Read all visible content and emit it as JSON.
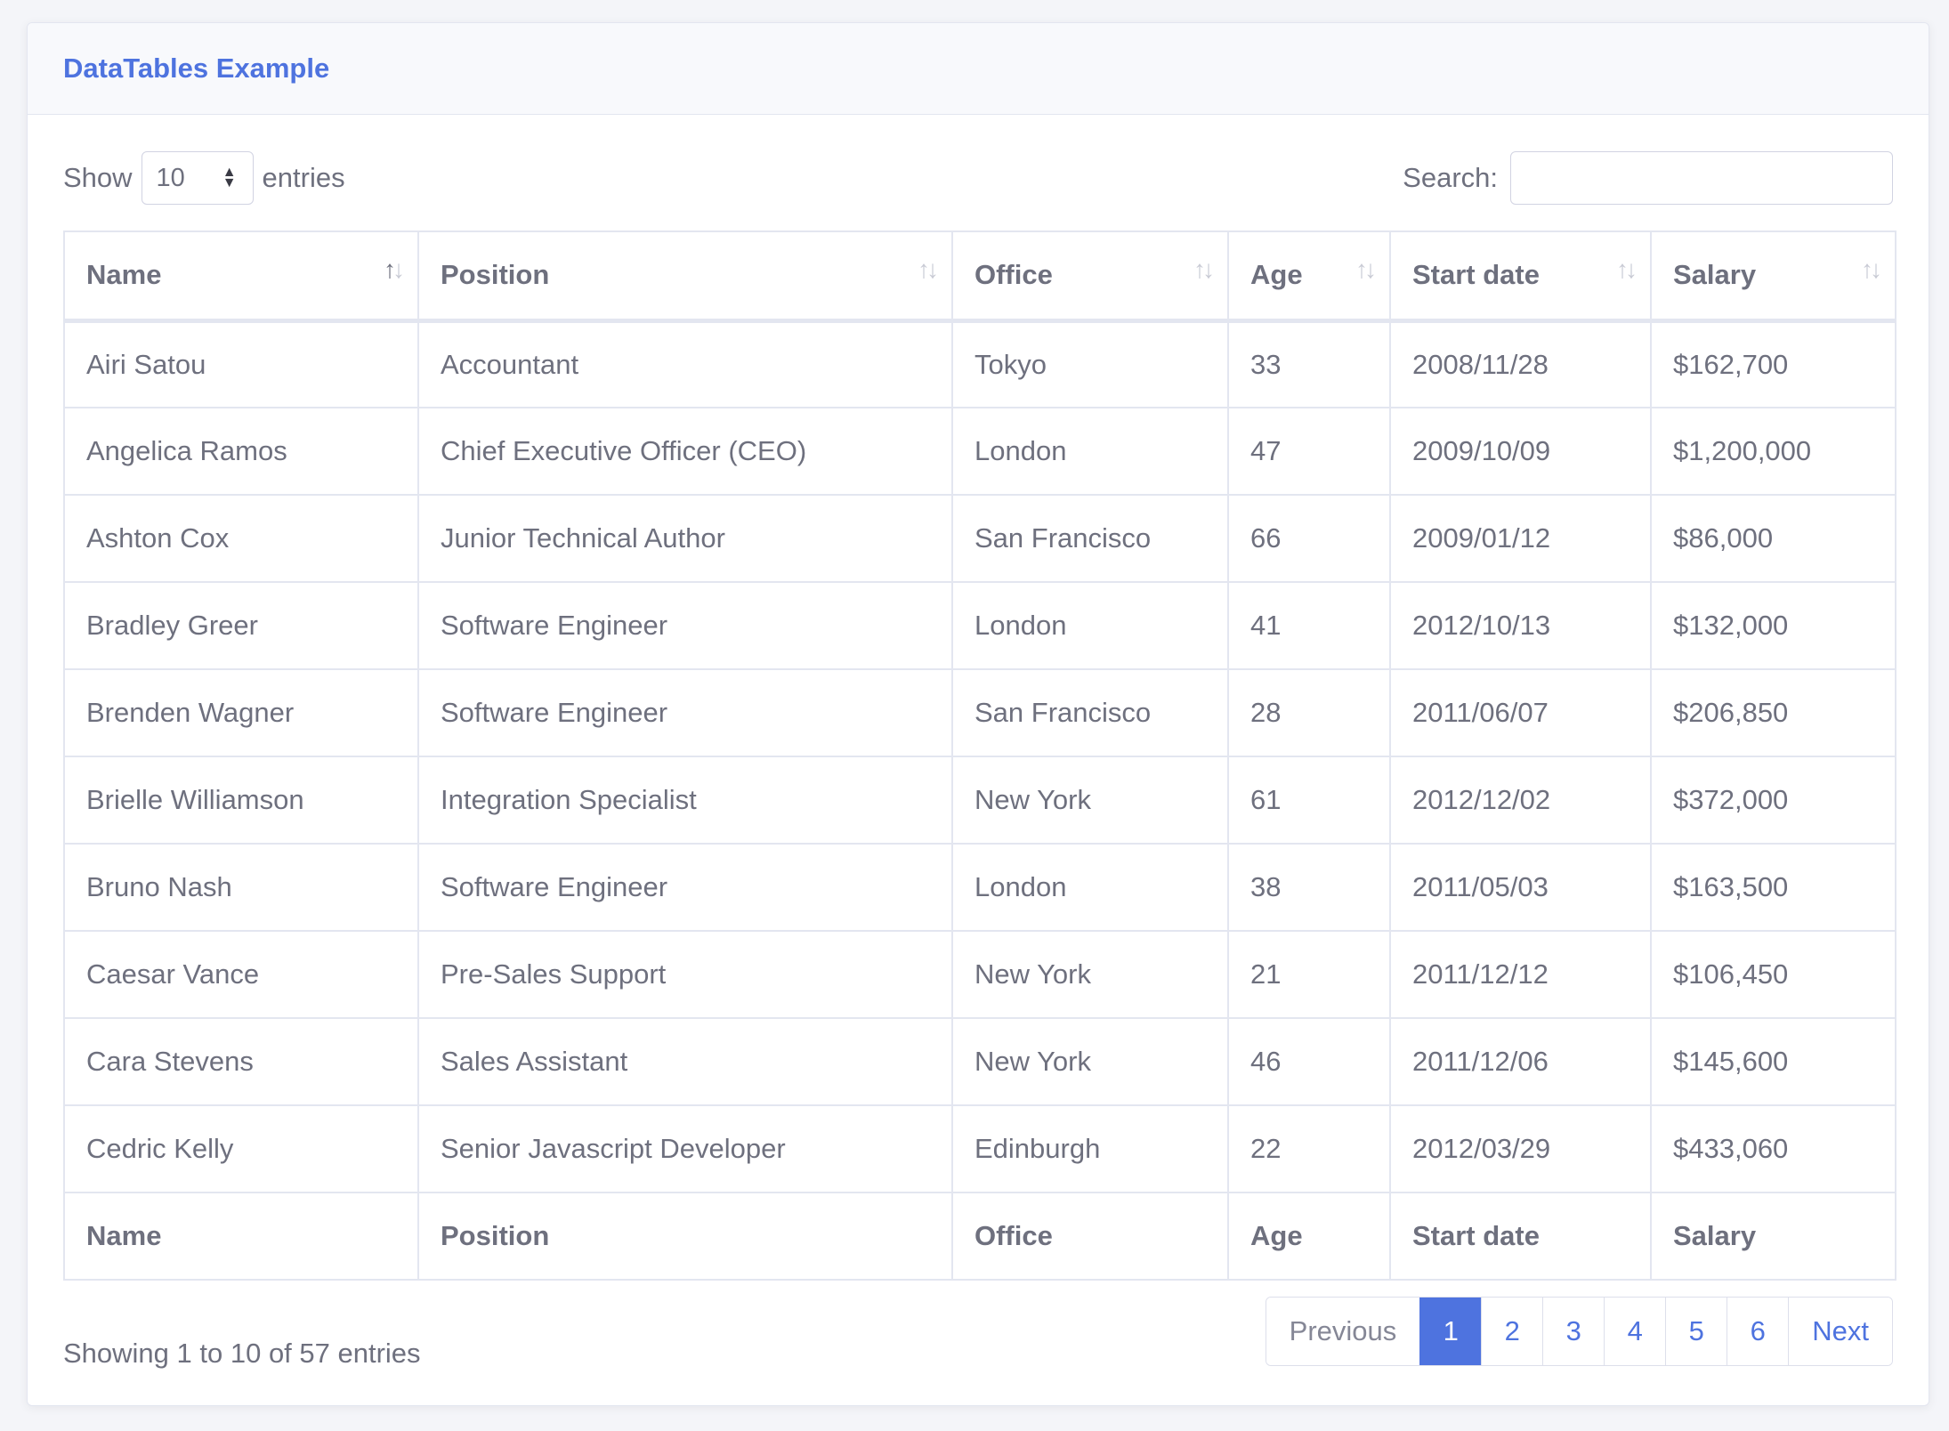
{
  "card": {
    "title": "DataTables Example"
  },
  "length": {
    "prefix": "Show",
    "value": "10",
    "suffix": "entries"
  },
  "search": {
    "label": "Search:",
    "value": "",
    "placeholder": ""
  },
  "columns": [
    "Name",
    "Position",
    "Office",
    "Age",
    "Start date",
    "Salary"
  ],
  "rows": [
    [
      "Airi Satou",
      "Accountant",
      "Tokyo",
      "33",
      "2008/11/28",
      "$162,700"
    ],
    [
      "Angelica Ramos",
      "Chief Executive Officer (CEO)",
      "London",
      "47",
      "2009/10/09",
      "$1,200,000"
    ],
    [
      "Ashton Cox",
      "Junior Technical Author",
      "San Francisco",
      "66",
      "2009/01/12",
      "$86,000"
    ],
    [
      "Bradley Greer",
      "Software Engineer",
      "London",
      "41",
      "2012/10/13",
      "$132,000"
    ],
    [
      "Brenden Wagner",
      "Software Engineer",
      "San Francisco",
      "28",
      "2011/06/07",
      "$206,850"
    ],
    [
      "Brielle Williamson",
      "Integration Specialist",
      "New York",
      "61",
      "2012/12/02",
      "$372,000"
    ],
    [
      "Bruno Nash",
      "Software Engineer",
      "London",
      "38",
      "2011/05/03",
      "$163,500"
    ],
    [
      "Caesar Vance",
      "Pre-Sales Support",
      "New York",
      "21",
      "2011/12/12",
      "$106,450"
    ],
    [
      "Cara Stevens",
      "Sales Assistant",
      "New York",
      "46",
      "2011/12/06",
      "$145,600"
    ],
    [
      "Cedric Kelly",
      "Senior Javascript Developer",
      "Edinburgh",
      "22",
      "2012/03/29",
      "$433,060"
    ]
  ],
  "sort": {
    "column": "Name",
    "direction": "ascending"
  },
  "info": "Showing 1 to 10 of 57 entries",
  "pagination": {
    "previous": "Previous",
    "pages": [
      "1",
      "2",
      "3",
      "4",
      "5",
      "6"
    ],
    "current": "1",
    "next": "Next"
  },
  "colors": {
    "accent": "#4e73df",
    "text": "#6e707e",
    "border": "#e3e6f0",
    "header_bg": "#f8f9fc",
    "page_bg": "#f4f5f9"
  },
  "icons": {
    "sort": "sort-arrows-icon",
    "select": "select-arrows-icon"
  }
}
